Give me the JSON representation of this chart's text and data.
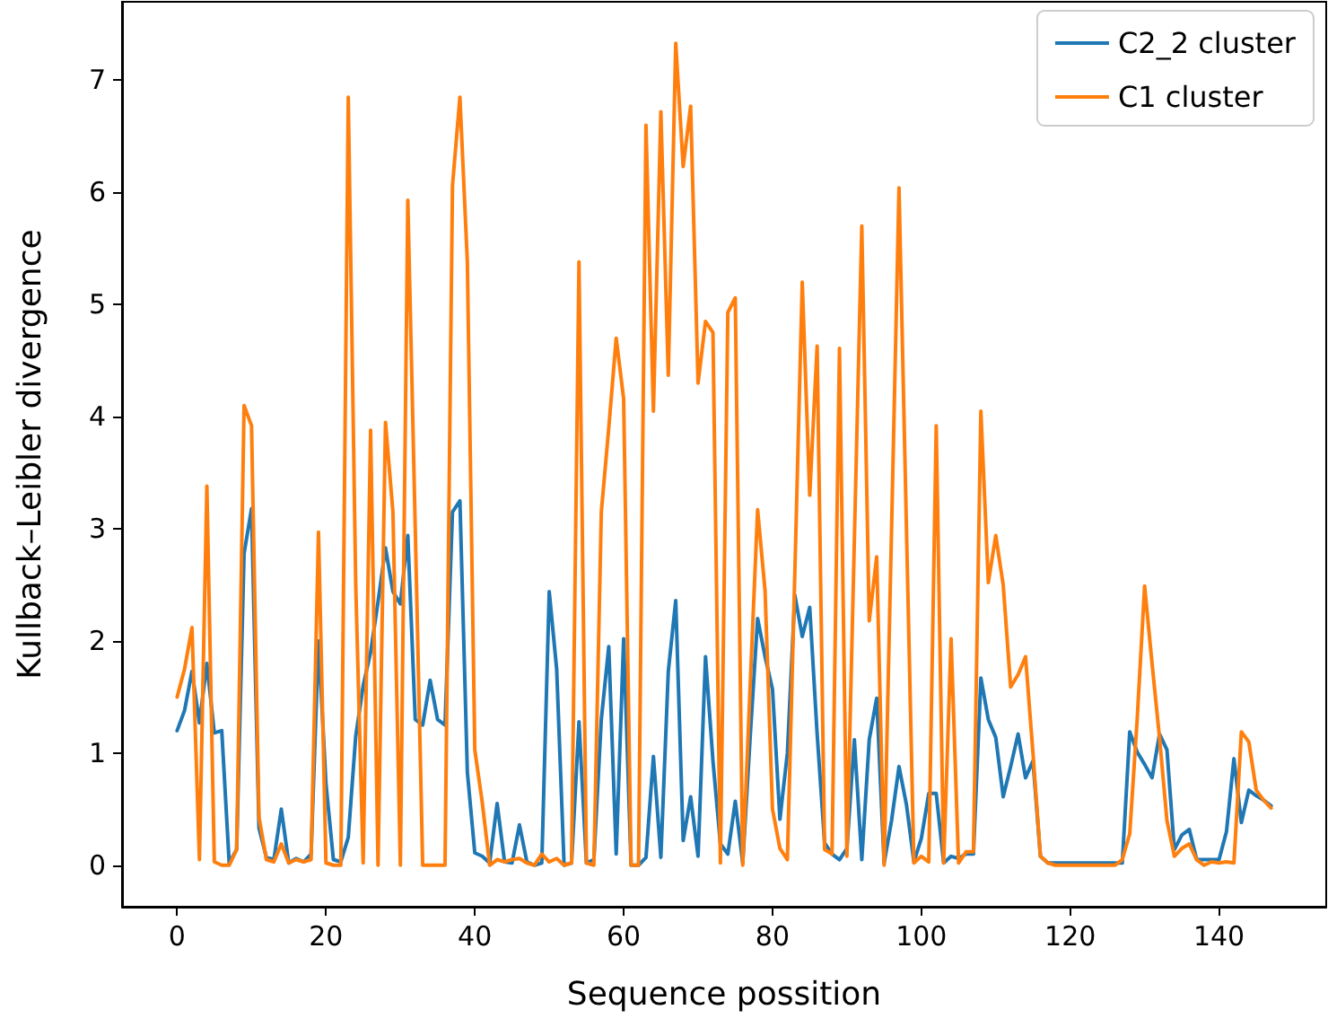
{
  "chart_data": {
    "type": "line",
    "xlabel": "Sequence possition",
    "ylabel": "Kullback–Leibler divergence",
    "x": [
      0,
      1,
      2,
      3,
      4,
      5,
      6,
      7,
      8,
      9,
      10,
      11,
      12,
      13,
      14,
      15,
      16,
      17,
      18,
      19,
      20,
      21,
      22,
      23,
      24,
      25,
      26,
      27,
      28,
      29,
      30,
      31,
      32,
      33,
      34,
      35,
      36,
      37,
      38,
      39,
      40,
      41,
      42,
      43,
      44,
      45,
      46,
      47,
      48,
      49,
      50,
      51,
      52,
      53,
      54,
      55,
      56,
      57,
      58,
      59,
      60,
      61,
      62,
      63,
      64,
      65,
      66,
      67,
      68,
      69,
      70,
      71,
      72,
      73,
      74,
      75,
      76,
      77,
      78,
      79,
      80,
      81,
      82,
      83,
      84,
      85,
      86,
      87,
      88,
      89,
      90,
      91,
      92,
      93,
      94,
      95,
      96,
      97,
      98,
      99,
      100,
      101,
      102,
      103,
      104,
      105,
      106,
      107,
      108,
      109,
      110,
      111,
      112,
      113,
      114,
      115,
      116,
      117,
      118,
      119,
      120,
      121,
      122,
      123,
      124,
      125,
      126,
      127,
      128,
      129,
      130,
      131,
      132,
      133,
      134,
      135,
      136,
      137,
      138,
      139,
      140,
      141,
      142,
      143,
      144,
      145,
      146,
      147
    ],
    "series": [
      {
        "name": "C2_2 cluster",
        "color": "#1f77b4",
        "values": [
          1.2,
          1.38,
          1.73,
          1.27,
          1.8,
          1.18,
          1.2,
          0.02,
          0.14,
          2.78,
          3.18,
          0.33,
          0.07,
          0.05,
          0.5,
          0.02,
          0.06,
          0.03,
          0.1,
          2.0,
          0.73,
          0.05,
          0.03,
          0.25,
          1.15,
          1.6,
          1.9,
          2.35,
          2.83,
          2.44,
          2.33,
          2.94,
          1.3,
          1.25,
          1.65,
          1.3,
          1.25,
          3.15,
          3.25,
          0.83,
          0.11,
          0.08,
          0.02,
          0.55,
          0.03,
          0.02,
          0.36,
          0.03,
          0.0,
          0.02,
          2.44,
          1.75,
          0.0,
          0.02,
          1.28,
          0.02,
          0.05,
          1.3,
          1.95,
          0.1,
          2.02,
          0.0,
          0.0,
          0.07,
          0.97,
          0.07,
          1.73,
          2.36,
          0.22,
          0.61,
          0.08,
          1.86,
          0.93,
          0.19,
          0.1,
          0.57,
          0.02,
          1.14,
          2.2,
          1.86,
          1.57,
          0.41,
          1.0,
          2.41,
          2.04,
          2.3,
          1.17,
          0.2,
          0.1,
          0.05,
          0.15,
          1.12,
          0.05,
          1.12,
          1.49,
          0.02,
          0.4,
          0.88,
          0.54,
          0.03,
          0.24,
          0.64,
          0.64,
          0.02,
          0.08,
          0.06,
          0.1,
          0.1,
          1.67,
          1.3,
          1.14,
          0.61,
          0.88,
          1.17,
          0.78,
          0.93,
          0.08,
          0.02,
          0.02,
          0.02,
          0.02,
          0.02,
          0.02,
          0.02,
          0.02,
          0.02,
          0.02,
          0.02,
          1.19,
          1.01,
          0.9,
          0.78,
          1.17,
          1.03,
          0.14,
          0.27,
          0.32,
          0.05,
          0.05,
          0.05,
          0.05,
          0.3,
          0.95,
          0.38,
          0.67,
          0.62,
          0.58,
          0.53
        ]
      },
      {
        "name": "C1 cluster",
        "color": "#ff7f0e",
        "values": [
          1.5,
          1.75,
          2.12,
          0.05,
          3.38,
          0.03,
          0.0,
          0.0,
          0.14,
          4.1,
          3.92,
          0.43,
          0.05,
          0.03,
          0.19,
          0.02,
          0.05,
          0.03,
          0.05,
          2.97,
          0.02,
          0.0,
          0.0,
          6.85,
          2.5,
          0.02,
          3.88,
          0.0,
          3.95,
          3.15,
          0.0,
          5.93,
          3.0,
          0.0,
          0.0,
          0.0,
          0.0,
          6.06,
          6.85,
          5.38,
          1.03,
          0.56,
          0.0,
          0.05,
          0.03,
          0.05,
          0.06,
          0.02,
          0.0,
          0.1,
          0.03,
          0.06,
          0.0,
          0.02,
          5.38,
          0.02,
          0.0,
          3.15,
          3.9,
          4.7,
          4.16,
          0.0,
          0.0,
          6.6,
          4.05,
          6.72,
          4.37,
          7.33,
          6.23,
          6.77,
          4.3,
          4.85,
          4.75,
          0.02,
          4.93,
          5.06,
          0.0,
          1.6,
          3.17,
          2.45,
          0.5,
          0.15,
          0.05,
          2.6,
          5.2,
          3.3,
          4.63,
          0.14,
          0.1,
          4.61,
          0.08,
          2.9,
          5.7,
          2.18,
          2.75,
          0.0,
          3.0,
          6.04,
          3.0,
          0.02,
          0.08,
          0.03,
          3.92,
          0.02,
          2.02,
          0.02,
          0.12,
          0.12,
          4.05,
          2.52,
          2.94,
          2.5,
          1.59,
          1.7,
          1.86,
          1.0,
          0.08,
          0.02,
          0.0,
          0.0,
          0.0,
          0.0,
          0.0,
          0.0,
          0.0,
          0.0,
          0.0,
          0.05,
          0.28,
          1.3,
          2.49,
          1.8,
          1.14,
          0.4,
          0.08,
          0.15,
          0.19,
          0.05,
          0.0,
          0.03,
          0.02,
          0.03,
          0.02,
          1.19,
          1.1,
          0.67,
          0.58,
          0.51
        ]
      }
    ],
    "xlim": [
      -7.4,
      154.4
    ],
    "ylim": [
      -0.37,
      7.7
    ],
    "xticks": [
      0,
      20,
      40,
      60,
      80,
      100,
      120,
      140
    ],
    "yticks": [
      0,
      1,
      2,
      3,
      4,
      5,
      6,
      7
    ],
    "legend": "top right",
    "grid": false,
    "marker": "none",
    "line_style": "solid"
  }
}
